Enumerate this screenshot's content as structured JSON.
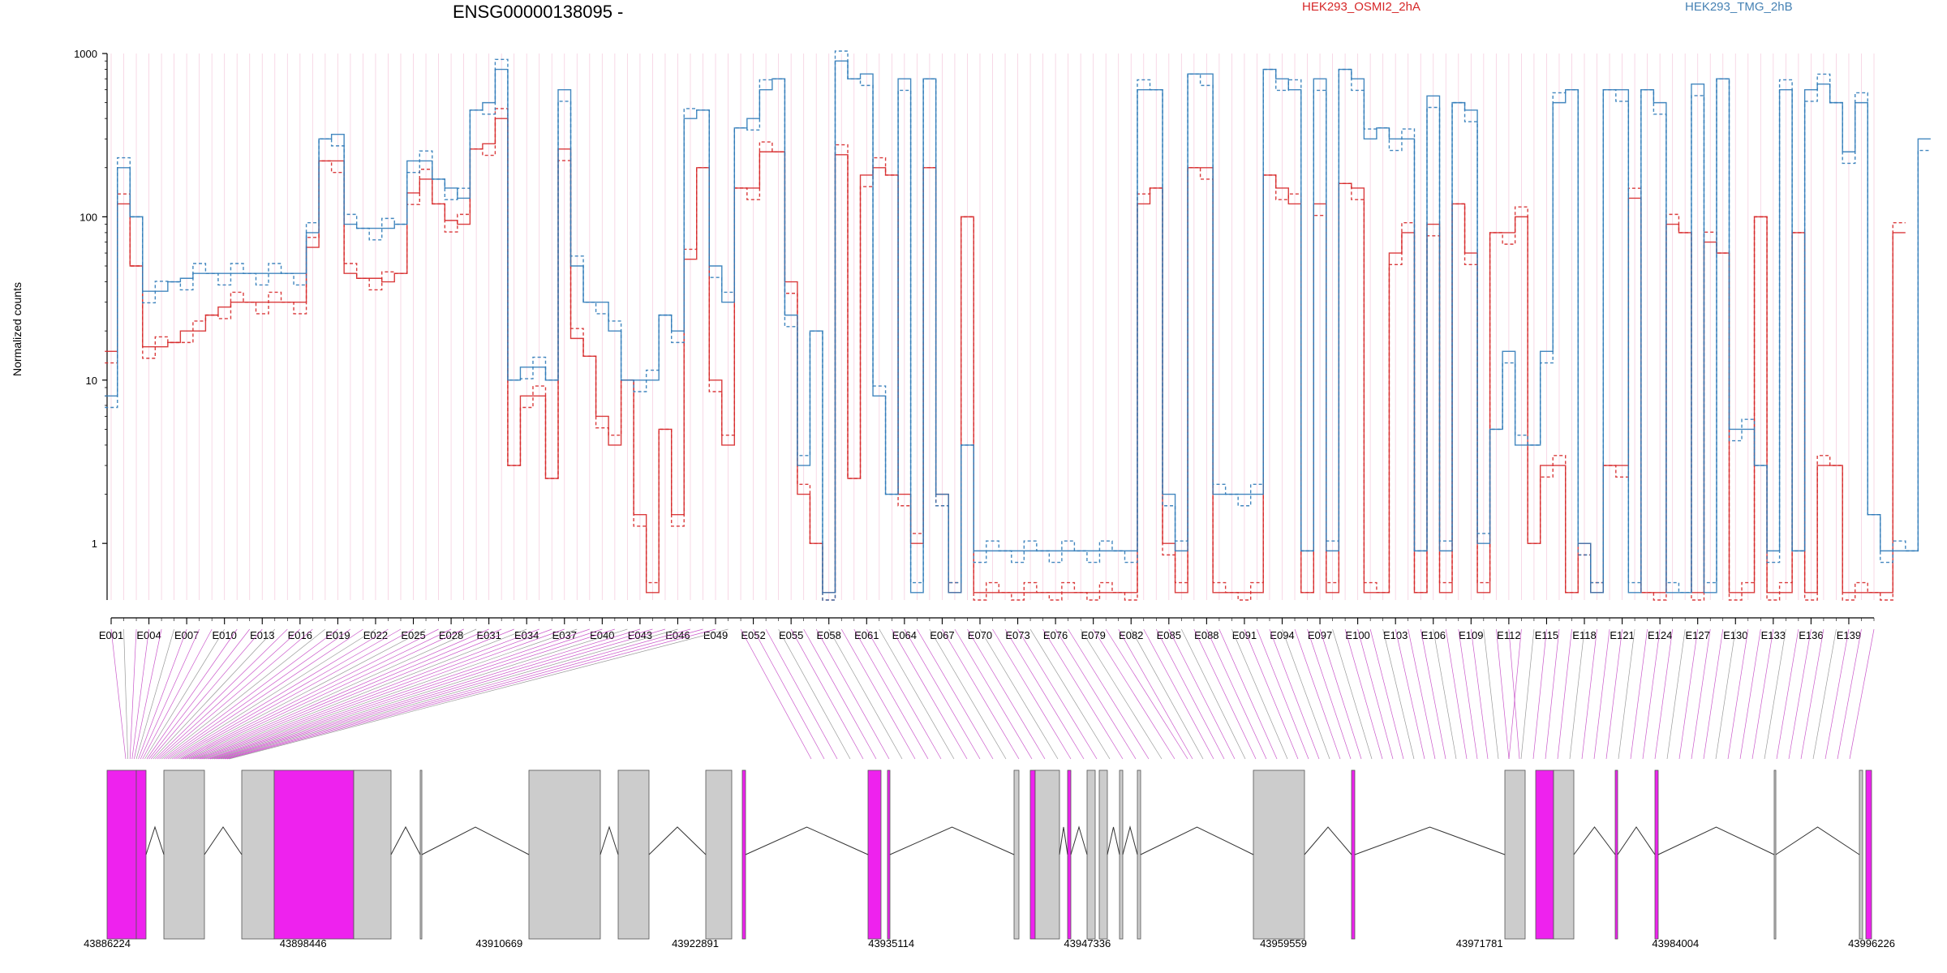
{
  "figure": {
    "title": "ENSG00000138095 -",
    "ylabel": "Normalized counts",
    "legend": [
      {
        "label": "HEK293_OSMI2_2hA",
        "color": "#d62728"
      },
      {
        "label": "HEK293_TMG_2hB",
        "color": "#1f77b4"
      }
    ],
    "exon_labels": [
      "E001",
      "E004",
      "E007",
      "E010",
      "E013",
      "E016",
      "E019",
      "E022",
      "E025",
      "E028",
      "E031",
      "E034",
      "E037",
      "E040",
      "E043",
      "E046",
      "E049",
      "E052",
      "E055",
      "E058",
      "E061",
      "E064",
      "E067",
      "E070",
      "E073",
      "E076",
      "E079",
      "E082",
      "E085",
      "E088",
      "E091",
      "E094",
      "E097",
      "E100",
      "E103",
      "E106",
      "E109",
      "E112",
      "E115",
      "E118",
      "E121",
      "E124",
      "E127",
      "E130",
      "E133",
      "E136",
      "E139"
    ],
    "coordinate_labels": [
      "43886224",
      "43898446",
      "43910669",
      "43922891",
      "43935114",
      "43947336",
      "43959559",
      "43971781",
      "43984004",
      "43996226"
    ],
    "y_tick_labels": [
      "1",
      "10",
      "100",
      "1000"
    ]
  },
  "chart_data": {
    "type": "line",
    "title": "ENSG00000138095 -",
    "ylabel": "Normalized counts",
    "xlabel": "",
    "y_scale": "log",
    "ylim": [
      0.45,
      1000
    ],
    "yticks": [
      1,
      10,
      100,
      1000
    ],
    "n_exons": 141,
    "x_tick_labels": [
      "E001",
      "E004",
      "E007",
      "E010",
      "E013",
      "E016",
      "E019",
      "E022",
      "E025",
      "E028",
      "E031",
      "E034",
      "E037",
      "E040",
      "E043",
      "E046",
      "E049",
      "E052",
      "E055",
      "E058",
      "E061",
      "E064",
      "E067",
      "E070",
      "E073",
      "E076",
      "E079",
      "E082",
      "E085",
      "E088",
      "E091",
      "E094",
      "E097",
      "E100",
      "E103",
      "E106",
      "E109",
      "E112",
      "E115",
      "E118",
      "E121",
      "E124",
      "E127",
      "E130",
      "E133",
      "E136",
      "E139"
    ],
    "series_colors": {
      "HEK293_OSMI2_2hA": "#d62728",
      "HEK293_TMG_2hB": "#1f77b4"
    },
    "series": [
      {
        "name": "HEK293_OSMI2_2hA",
        "values": [
          15,
          120,
          50,
          16,
          16,
          17,
          20,
          20,
          25,
          28,
          30,
          30,
          30,
          30,
          30,
          30,
          65,
          220,
          220,
          45,
          42,
          42,
          40,
          45,
          140,
          170,
          120,
          95,
          90,
          260,
          280,
          400,
          3,
          8,
          8,
          2.5,
          260,
          18,
          14,
          6,
          4,
          10,
          1.5,
          0.5,
          5,
          1.5,
          55,
          200,
          10,
          4,
          150,
          150,
          250,
          250,
          40,
          2,
          1,
          0.5,
          240,
          2.5,
          180,
          200,
          180,
          2,
          1,
          200,
          2,
          0.5,
          100,
          0.5,
          0.5,
          0.5,
          0.5,
          0.5,
          0.5,
          0.5,
          0.5,
          0.5,
          0.5,
          0.5,
          0.5,
          0.5,
          120,
          150,
          1,
          0.5,
          200,
          200,
          0.5,
          0.5,
          0.5,
          0.5,
          180,
          150,
          120,
          0.5,
          120,
          0.5,
          160,
          150,
          0.5,
          0.5,
          60,
          80,
          0.5,
          90,
          0.5,
          120,
          60,
          0.5,
          80,
          80,
          100,
          1,
          3,
          3,
          0.5,
          1,
          0.5,
          3,
          3,
          130,
          0.5,
          0.5,
          90,
          80,
          0.5,
          70,
          60,
          0.5,
          0.5,
          100,
          0.5,
          0.5,
          80,
          0.5,
          3,
          3,
          0.5,
          0.5,
          0.5,
          0.5,
          80
        ]
      },
      {
        "name": "HEK293_TMG_2hB",
        "values": [
          8,
          200,
          100,
          35,
          35,
          40,
          42,
          45,
          45,
          45,
          45,
          45,
          45,
          45,
          45,
          45,
          80,
          300,
          320,
          90,
          85,
          85,
          85,
          90,
          220,
          220,
          170,
          150,
          130,
          450,
          500,
          800,
          10,
          12,
          12,
          10,
          600,
          50,
          30,
          30,
          20,
          10,
          10,
          10,
          25,
          20,
          400,
          450,
          50,
          30,
          350,
          400,
          600,
          700,
          25,
          3,
          20,
          0.5,
          900,
          700,
          750,
          8,
          2,
          700,
          0.5,
          700,
          2,
          0.5,
          4,
          0.9,
          0.9,
          0.9,
          0.9,
          0.9,
          0.9,
          0.9,
          0.9,
          0.9,
          0.9,
          0.9,
          0.9,
          0.9,
          600,
          600,
          2,
          0.9,
          750,
          750,
          2,
          2,
          2,
          2,
          800,
          700,
          600,
          0.9,
          700,
          0.9,
          800,
          700,
          300,
          350,
          300,
          300,
          0.9,
          550,
          0.9,
          500,
          450,
          1,
          5,
          15,
          4,
          4,
          15,
          500,
          600,
          1,
          0.5,
          600,
          600,
          0.5,
          600,
          500,
          0.5,
          0.5,
          650,
          0.5,
          700,
          5,
          5,
          3,
          0.9,
          600,
          0.9,
          600,
          650,
          500,
          250,
          500,
          1.5,
          0.9,
          0.9,
          0.9,
          300
        ]
      }
    ],
    "gene_model": {
      "coordinate_labels": [
        "43886224",
        "43898446",
        "43910669",
        "43922891",
        "43935114",
        "43947336",
        "43959559",
        "43971781",
        "43984004",
        "43996226"
      ],
      "coord_start": 43886224,
      "coord_end": 43996226,
      "exon_color_highlight": "#ee22ee",
      "exon_color_normal": "#cccccc"
    }
  }
}
